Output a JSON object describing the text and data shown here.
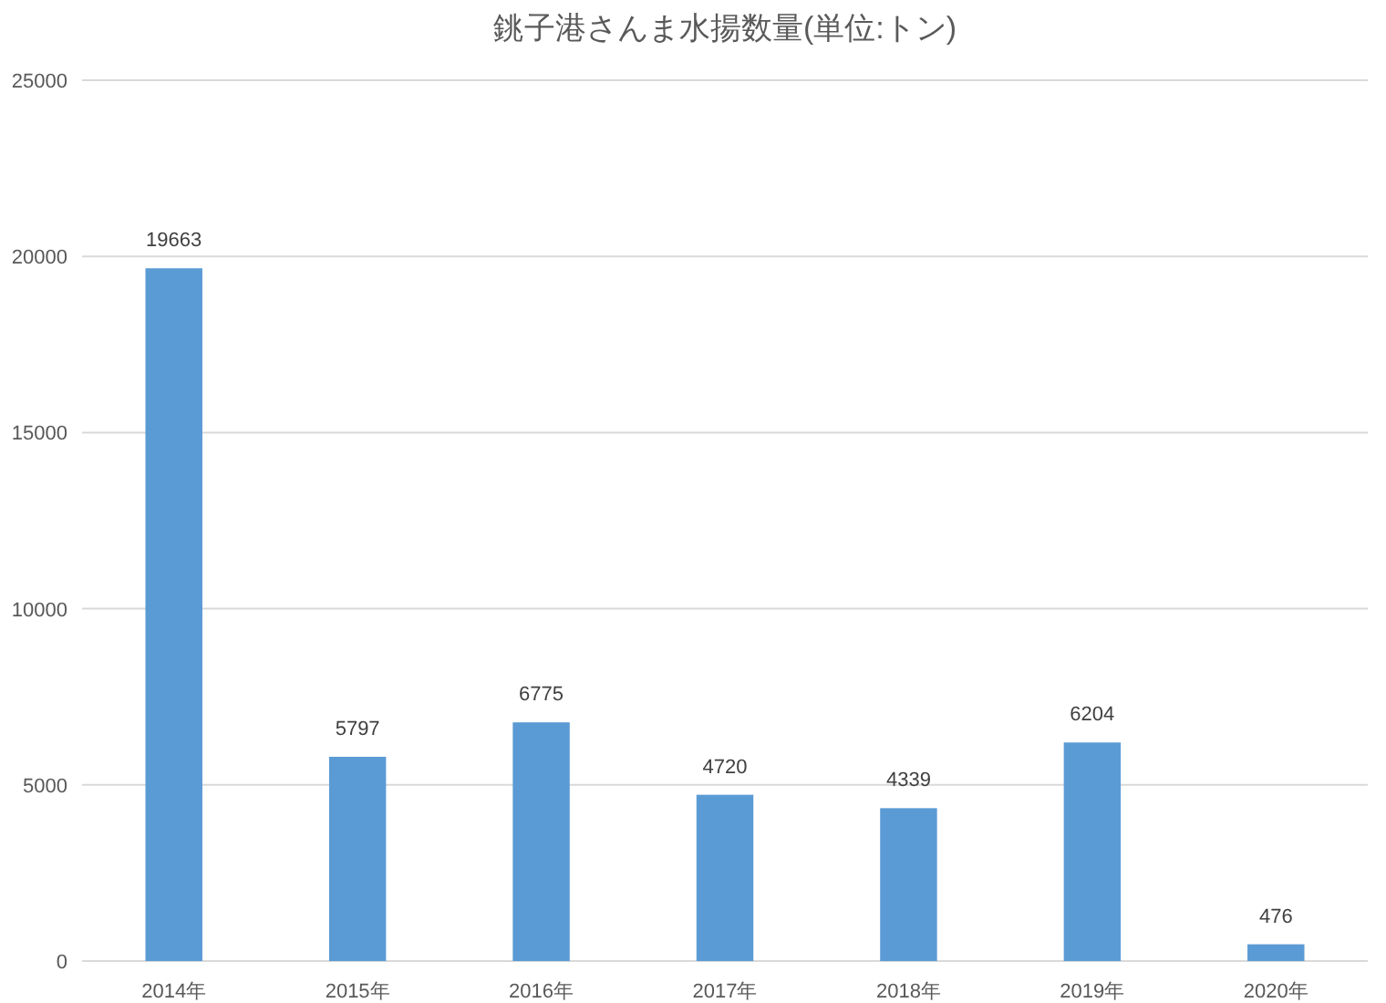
{
  "chart_data": {
    "type": "bar",
    "title": "銚子港さんま水揚数量(単位:トン)",
    "categories": [
      "2014年",
      "2015年",
      "2016年",
      "2017年",
      "2018年",
      "2019年",
      "2020年"
    ],
    "values": [
      19663,
      5797,
      6775,
      4720,
      4339,
      6204,
      476
    ],
    "color": "#5b9bd5",
    "ylim": [
      0,
      25000
    ],
    "yticks": [
      0,
      5000,
      10000,
      15000,
      20000,
      25000
    ],
    "grid": "y",
    "data_labels": true
  }
}
